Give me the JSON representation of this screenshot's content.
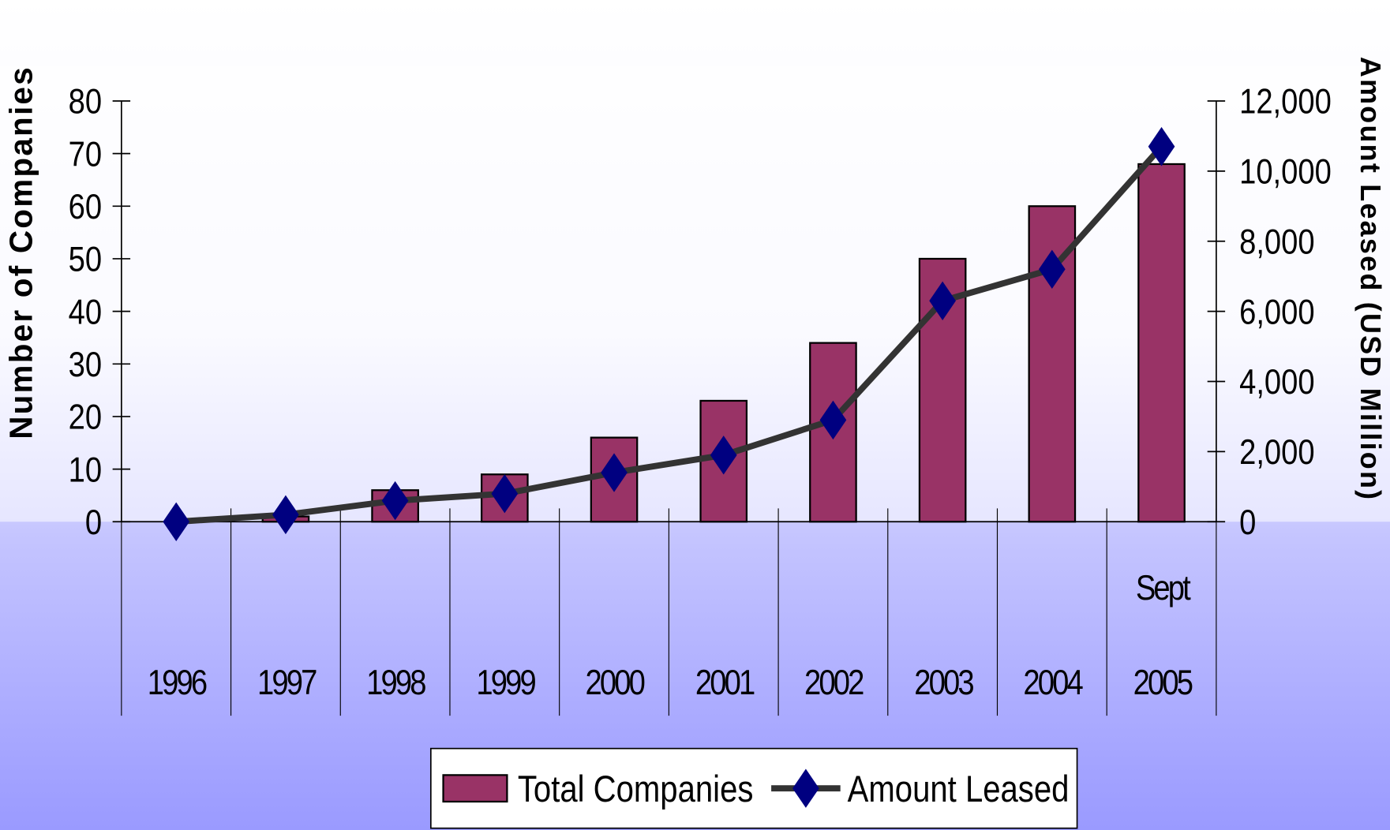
{
  "chart_data": {
    "type": "bar_line",
    "categories": [
      "1996",
      "1997",
      "1998",
      "1999",
      "2000",
      "2001",
      "2002",
      "2003",
      "2004",
      "Sept\n2005"
    ],
    "ylabel": "Number of Companies",
    "y2label": "Amount Leased (USD Million)",
    "ylim": [
      0,
      80
    ],
    "yticks": [
      0,
      10,
      20,
      30,
      40,
      50,
      60,
      70,
      80
    ],
    "y2lim": [
      0,
      12000
    ],
    "y2ticks": [
      0,
      {
        "value": 2000,
        "label": "2,000"
      },
      {
        "value": 4000,
        "label": "4,000"
      },
      {
        "value": 6000,
        "label": "6,000"
      },
      {
        "value": 8000,
        "label": "8,000"
      },
      {
        "value": 10000,
        "label": "10,000"
      },
      {
        "value": 12000,
        "label": "12,000"
      }
    ],
    "series": [
      {
        "name": "Total Companies",
        "type": "bar",
        "color": "#993366",
        "values": [
          0,
          1,
          6,
          9,
          16,
          23,
          34,
          50,
          60,
          68
        ]
      },
      {
        "name": "Amount Leased",
        "type": "line",
        "axis": "y2",
        "color": "#333333",
        "marker_color": "#000080",
        "values": [
          0,
          200,
          600,
          800,
          1400,
          1900,
          2900,
          6300,
          7200,
          10700
        ]
      }
    ],
    "legend": "bottom"
  }
}
